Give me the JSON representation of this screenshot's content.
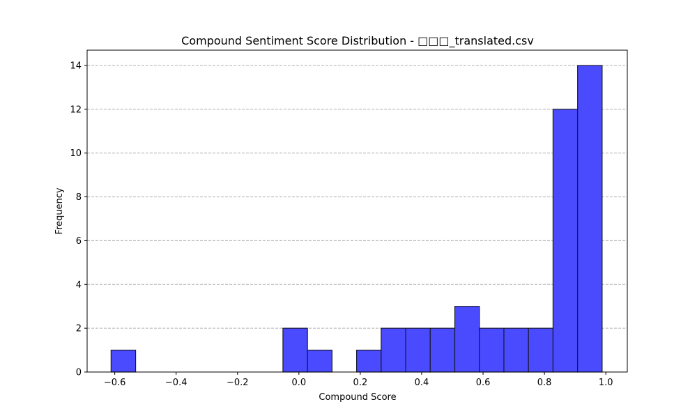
{
  "chart_data": {
    "type": "bar",
    "title": "Compound Sentiment Score Distribution - □□□_translated.csv",
    "xlabel": "Compound Score",
    "ylabel": "Frequency",
    "xlim": [
      -0.69,
      1.07
    ],
    "ylim": [
      0,
      14.7
    ],
    "xticks": [
      "−0.6",
      "−0.4",
      "−0.2",
      "0.0",
      "0.2",
      "0.4",
      "0.6",
      "0.8",
      "1.0"
    ],
    "xtick_values": [
      -0.6,
      -0.4,
      -0.2,
      0.0,
      0.2,
      0.4,
      0.6,
      0.8,
      1.0
    ],
    "yticks": [
      "0",
      "2",
      "4",
      "6",
      "8",
      "10",
      "12",
      "14"
    ],
    "ytick_values": [
      0,
      2,
      4,
      6,
      8,
      10,
      12,
      14
    ],
    "grid": "y-dashed",
    "bar_color": "#4a4aff",
    "edge_color": "#1a1a2e",
    "bins": [
      {
        "x0": -0.612,
        "x1": -0.532,
        "count": 1
      },
      {
        "x0": -0.532,
        "x1": -0.452,
        "count": 0
      },
      {
        "x0": -0.452,
        "x1": -0.372,
        "count": 0
      },
      {
        "x0": -0.372,
        "x1": -0.292,
        "count": 0
      },
      {
        "x0": -0.292,
        "x1": -0.212,
        "count": 0
      },
      {
        "x0": -0.212,
        "x1": -0.132,
        "count": 0
      },
      {
        "x0": -0.132,
        "x1": -0.052,
        "count": 0
      },
      {
        "x0": -0.052,
        "x1": 0.028,
        "count": 2
      },
      {
        "x0": 0.028,
        "x1": 0.108,
        "count": 1
      },
      {
        "x0": 0.108,
        "x1": 0.188,
        "count": 0
      },
      {
        "x0": 0.188,
        "x1": 0.268,
        "count": 1
      },
      {
        "x0": 0.268,
        "x1": 0.348,
        "count": 2
      },
      {
        "x0": 0.348,
        "x1": 0.428,
        "count": 2
      },
      {
        "x0": 0.428,
        "x1": 0.508,
        "count": 2
      },
      {
        "x0": 0.508,
        "x1": 0.588,
        "count": 3
      },
      {
        "x0": 0.588,
        "x1": 0.668,
        "count": 2
      },
      {
        "x0": 0.668,
        "x1": 0.748,
        "count": 2
      },
      {
        "x0": 0.748,
        "x1": 0.828,
        "count": 2
      },
      {
        "x0": 0.828,
        "x1": 0.908,
        "count": 12
      },
      {
        "x0": 0.908,
        "x1": 0.988,
        "count": 14
      }
    ]
  }
}
